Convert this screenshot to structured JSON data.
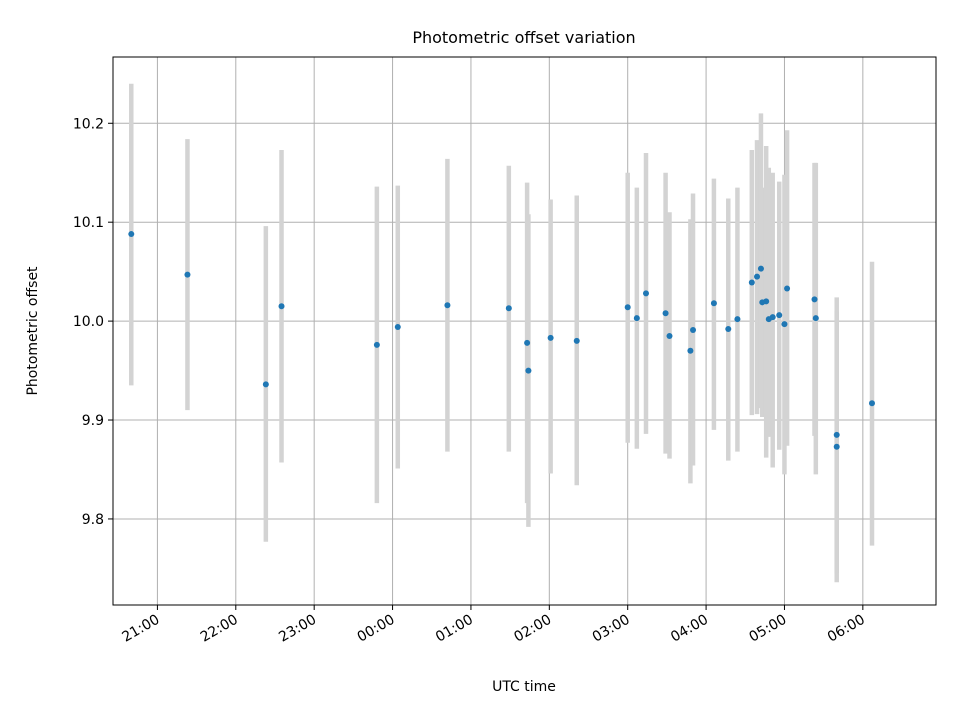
{
  "chart_data": {
    "type": "scatter",
    "title": "Photometric offset variation",
    "xlabel": "UTC time",
    "ylabel": "Photometric offset",
    "grid": true,
    "legend": "none",
    "marker_color": "#1f77b4",
    "errorbar_color": "#d3d3d3",
    "xlim": [
      "20:26",
      "06:56"
    ],
    "ylim": [
      9.713,
      10.267
    ],
    "xticks": [
      "21:00",
      "22:00",
      "23:00",
      "00:00",
      "01:00",
      "02:00",
      "03:00",
      "04:00",
      "05:00",
      "06:00"
    ],
    "yticks": [
      9.8,
      9.9,
      10.0,
      10.1,
      10.2
    ],
    "ytick_labels": [
      "9.8",
      "9.9",
      "10.0",
      "10.1",
      "10.2"
    ],
    "points": [
      {
        "x": "20:40",
        "y": 10.088,
        "ylow": 9.935,
        "yhigh": 10.24
      },
      {
        "x": "21:23",
        "y": 10.047,
        "ylow": 9.91,
        "yhigh": 10.184
      },
      {
        "x": "22:23",
        "y": 9.936,
        "ylow": 9.777,
        "yhigh": 10.096
      },
      {
        "x": "22:35",
        "y": 10.015,
        "ylow": 9.857,
        "yhigh": 10.173
      },
      {
        "x": "23:48",
        "y": 9.976,
        "ylow": 9.816,
        "yhigh": 10.136
      },
      {
        "x": "00:04",
        "y": 9.994,
        "ylow": 9.851,
        "yhigh": 10.137
      },
      {
        "x": "00:42",
        "y": 10.016,
        "ylow": 9.868,
        "yhigh": 10.164
      },
      {
        "x": "01:29",
        "y": 10.013,
        "ylow": 9.868,
        "yhigh": 10.157
      },
      {
        "x": "01:43",
        "y": 9.978,
        "ylow": 9.816,
        "yhigh": 10.14
      },
      {
        "x": "01:44",
        "y": 9.95,
        "ylow": 9.792,
        "yhigh": 10.108
      },
      {
        "x": "02:01",
        "y": 9.983,
        "ylow": 9.846,
        "yhigh": 10.123
      },
      {
        "x": "02:21",
        "y": 9.98,
        "ylow": 9.834,
        "yhigh": 10.127
      },
      {
        "x": "03:00",
        "y": 10.014,
        "ylow": 9.877,
        "yhigh": 10.15
      },
      {
        "x": "03:07",
        "y": 10.003,
        "ylow": 9.871,
        "yhigh": 10.135
      },
      {
        "x": "03:14",
        "y": 10.028,
        "ylow": 9.886,
        "yhigh": 10.17
      },
      {
        "x": "03:29",
        "y": 10.008,
        "ylow": 9.866,
        "yhigh": 10.15
      },
      {
        "x": "03:32",
        "y": 9.985,
        "ylow": 9.861,
        "yhigh": 10.11
      },
      {
        "x": "03:48",
        "y": 9.97,
        "ylow": 9.836,
        "yhigh": 10.103
      },
      {
        "x": "03:50",
        "y": 9.991,
        "ylow": 9.854,
        "yhigh": 10.129
      },
      {
        "x": "04:06",
        "y": 10.018,
        "ylow": 9.89,
        "yhigh": 10.144
      },
      {
        "x": "04:17",
        "y": 9.992,
        "ylow": 9.859,
        "yhigh": 10.124
      },
      {
        "x": "04:24",
        "y": 10.002,
        "ylow": 9.868,
        "yhigh": 10.135
      },
      {
        "x": "04:35",
        "y": 10.039,
        "ylow": 9.905,
        "yhigh": 10.173
      },
      {
        "x": "04:39",
        "y": 10.045,
        "ylow": 9.906,
        "yhigh": 10.183
      },
      {
        "x": "04:42",
        "y": 10.053,
        "ylow": 9.912,
        "yhigh": 10.21
      },
      {
        "x": "04:43",
        "y": 10.019,
        "ylow": 9.903,
        "yhigh": 10.135
      },
      {
        "x": "04:46",
        "y": 10.02,
        "ylow": 9.862,
        "yhigh": 10.177
      },
      {
        "x": "04:48",
        "y": 10.002,
        "ylow": 9.883,
        "yhigh": 10.155
      },
      {
        "x": "04:51",
        "y": 10.004,
        "ylow": 9.852,
        "yhigh": 10.15
      },
      {
        "x": "04:56",
        "y": 10.006,
        "ylow": 9.87,
        "yhigh": 10.141
      },
      {
        "x": "05:00",
        "y": 9.997,
        "ylow": 9.845,
        "yhigh": 10.148
      },
      {
        "x": "05:02",
        "y": 10.033,
        "ylow": 9.874,
        "yhigh": 10.193
      },
      {
        "x": "05:23",
        "y": 10.022,
        "ylow": 9.884,
        "yhigh": 10.16
      },
      {
        "x": "05:24",
        "y": 10.003,
        "ylow": 9.845,
        "yhigh": 10.16
      },
      {
        "x": "05:40",
        "y": 9.885,
        "ylow": 9.745,
        "yhigh": 10.024
      },
      {
        "x": "05:40",
        "y": 9.873,
        "ylow": 9.736,
        "yhigh": 10.01
      },
      {
        "x": "06:07",
        "y": 9.917,
        "ylow": 9.773,
        "yhigh": 10.06
      }
    ]
  }
}
